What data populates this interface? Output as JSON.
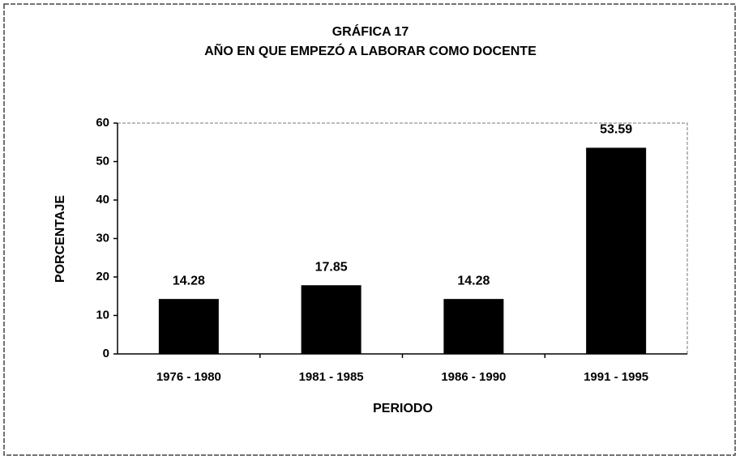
{
  "chart_data": {
    "type": "bar",
    "title": "GRÁFICA  17",
    "subtitle": "AÑO EN QUE EMPEZÓ A LABORAR COMO DOCENTE",
    "x_label": "PERIODO",
    "y_label": "PORCENTAJE",
    "categories": [
      "1976 - 1980",
      "1981 - 1985",
      "1986 - 1990",
      "1991 - 1995"
    ],
    "values": [
      14.28,
      17.85,
      14.28,
      53.59
    ],
    "color": "#000000",
    "ylim": [
      0,
      60
    ],
    "yticks": [
      0,
      10,
      20,
      30,
      40,
      50,
      60
    ],
    "grid": false
  }
}
